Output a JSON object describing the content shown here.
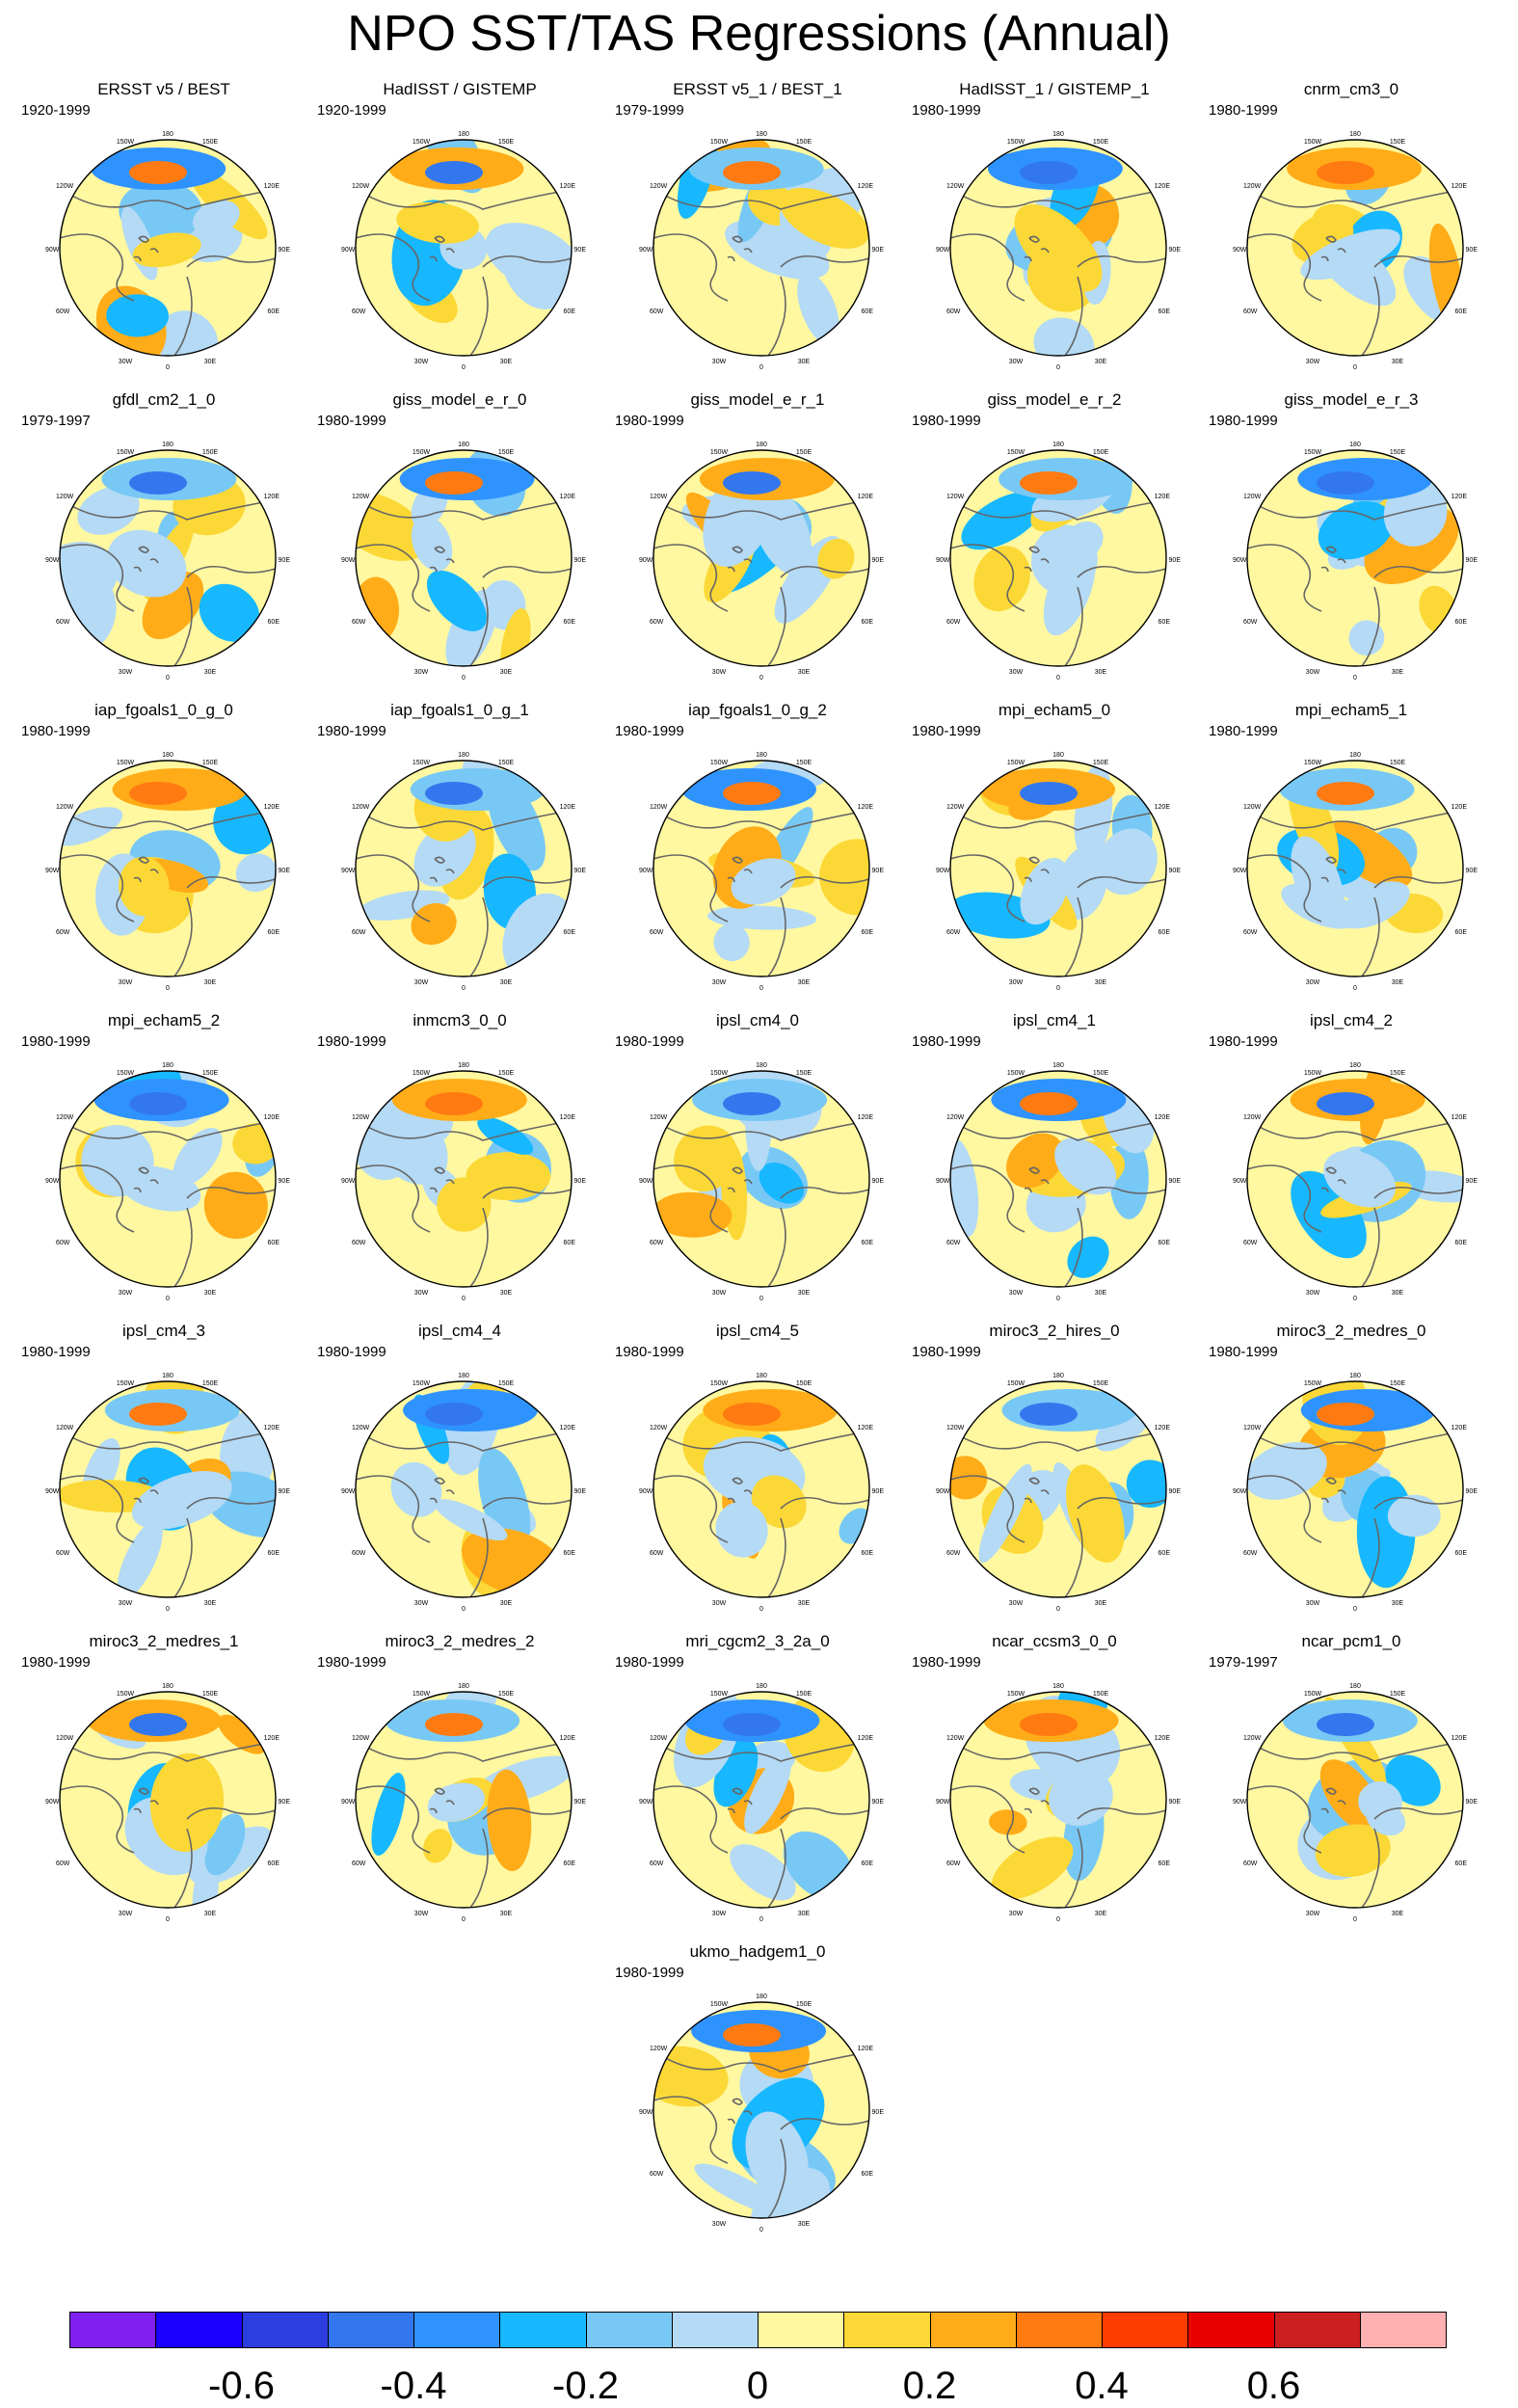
{
  "page": {
    "title": "NPO SST/TAS Regressions (Annual)"
  },
  "map_labels": {
    "north": "180",
    "ne": "150E",
    "nw": "150W",
    "e_upper": "120E",
    "w_upper": "120W",
    "e_mid": "90E",
    "w_mid": "90W",
    "e_lower": "60E",
    "w_lower": "60W",
    "se": "30E",
    "sw": "30W",
    "south": "0"
  },
  "panels": [
    {
      "title": "ERSST v5 / BEST",
      "period": "1920-1999"
    },
    {
      "title": "HadISST / GISTEMP",
      "period": "1920-1999"
    },
    {
      "title": "ERSST v5_1 / BEST_1",
      "period": "1979-1999"
    },
    {
      "title": "HadISST_1 / GISTEMP_1",
      "period": "1980-1999"
    },
    {
      "title": "cnrm_cm3_0",
      "period": "1980-1999"
    },
    {
      "title": "gfdl_cm2_1_0",
      "period": "1979-1997"
    },
    {
      "title": "giss_model_e_r_0",
      "period": "1980-1999"
    },
    {
      "title": "giss_model_e_r_1",
      "period": "1980-1999"
    },
    {
      "title": "giss_model_e_r_2",
      "period": "1980-1999"
    },
    {
      "title": "giss_model_e_r_3",
      "period": "1980-1999"
    },
    {
      "title": "iap_fgoals1_0_g_0",
      "period": "1980-1999"
    },
    {
      "title": "iap_fgoals1_0_g_1",
      "period": "1980-1999"
    },
    {
      "title": "iap_fgoals1_0_g_2",
      "period": "1980-1999"
    },
    {
      "title": "mpi_echam5_0",
      "period": "1980-1999"
    },
    {
      "title": "mpi_echam5_1",
      "period": "1980-1999"
    },
    {
      "title": "mpi_echam5_2",
      "period": "1980-1999"
    },
    {
      "title": "inmcm3_0_0",
      "period": "1980-1999"
    },
    {
      "title": "ipsl_cm4_0",
      "period": "1980-1999"
    },
    {
      "title": "ipsl_cm4_1",
      "period": "1980-1999"
    },
    {
      "title": "ipsl_cm4_2",
      "period": "1980-1999"
    },
    {
      "title": "ipsl_cm4_3",
      "period": "1980-1999"
    },
    {
      "title": "ipsl_cm4_4",
      "period": "1980-1999"
    },
    {
      "title": "ipsl_cm4_5",
      "period": "1980-1999"
    },
    {
      "title": "miroc3_2_hires_0",
      "period": "1980-1999"
    },
    {
      "title": "miroc3_2_medres_0",
      "period": "1980-1999"
    },
    {
      "title": "miroc3_2_medres_1",
      "period": "1980-1999"
    },
    {
      "title": "miroc3_2_medres_2",
      "period": "1980-1999"
    },
    {
      "title": "mri_cgcm2_3_2a_0",
      "period": "1980-1999"
    },
    {
      "title": "ncar_ccsm3_0_0",
      "period": "1980-1999"
    },
    {
      "title": "ncar_pcm1_0",
      "period": "1979-1997"
    },
    {
      "title": "ukmo_hadgem1_0",
      "period": "1980-1999"
    }
  ],
  "colorbar": {
    "colors": [
      "#8020f0",
      "#1a00ff",
      "#2c3ee0",
      "#3377ee",
      "#2f93ff",
      "#17b8ff",
      "#78c8f5",
      "#b4daf5",
      "#fff8a0",
      "#fcd836",
      "#ffac18",
      "#ff7a10",
      "#ff3c00",
      "#e80000",
      "#cc2020",
      "#ffb0b0"
    ],
    "labels": [
      "-0.6",
      "-0.4",
      "-0.2",
      "0",
      "0.2",
      "0.4",
      "0.6"
    ]
  }
}
